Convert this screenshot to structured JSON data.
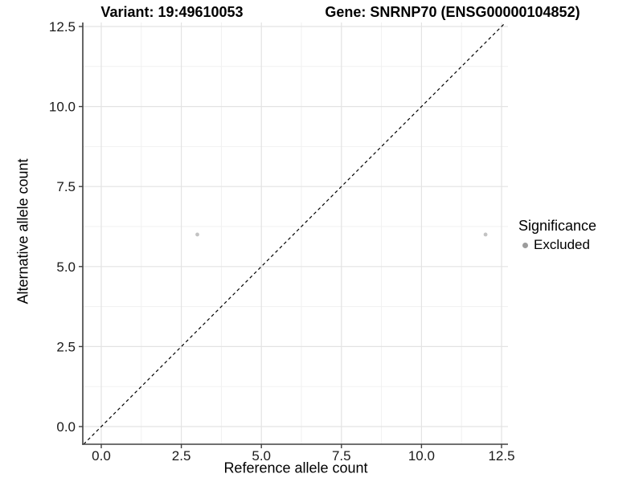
{
  "header": {
    "title_left": "Variant: 19:49610053",
    "title_right": "Gene: SNRNP70 (ENSG00000104852)"
  },
  "chart_data": {
    "type": "scatter",
    "title": "Variant: 19:49610053    Gene: SNRNP70 (ENSG00000104852)",
    "xlabel": "Reference allele count",
    "ylabel": "Alternative allele count",
    "xlim": [
      0,
      12.5
    ],
    "ylim": [
      0,
      12.5
    ],
    "x_ticks": [
      0.0,
      2.5,
      5.0,
      7.5,
      10.0,
      12.5
    ],
    "y_ticks": [
      0.0,
      2.5,
      5.0,
      7.5,
      10.0,
      12.5
    ],
    "x_minor_ticks": [
      1.25,
      3.75,
      6.25,
      8.75,
      11.25
    ],
    "y_minor_ticks": [
      1.25,
      3.75,
      6.25,
      8.75,
      11.25
    ],
    "tick_decimals": 1,
    "grid": {
      "major": true,
      "minor": true
    },
    "reference_line": {
      "type": "identity",
      "slope": 1,
      "intercept": 0,
      "style": "dashed",
      "color": "#000000"
    },
    "series": [
      {
        "name": "Excluded",
        "point_color": "#c3c3c3",
        "points": [
          {
            "x": 3,
            "y": 6
          },
          {
            "x": 12,
            "y": 6
          }
        ]
      }
    ],
    "legend": {
      "title": "Significance",
      "position": "right",
      "items": [
        {
          "label": "Excluded",
          "color": "#9c9c9c"
        }
      ]
    }
  },
  "colors": {
    "background": "#ffffff",
    "grid_major": "#e3e3e3",
    "grid_minor": "#f1f1f1",
    "axis_line": "#404040",
    "tick_mark": "#404040",
    "tick_label": "#1a1a1a"
  }
}
